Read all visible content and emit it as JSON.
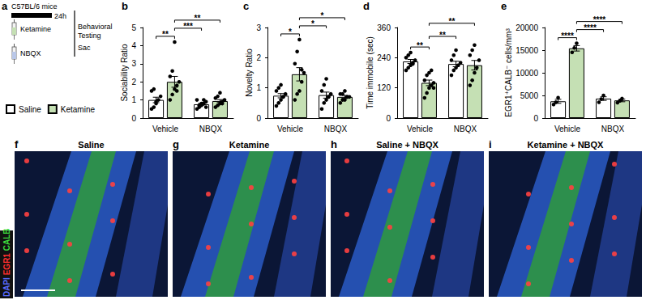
{
  "schematic": {
    "panel_label": "a",
    "strain": "C57BL/6 mice",
    "duration": "24h",
    "treatments": [
      "Ketamine",
      "NBQX"
    ],
    "endpoint": "Behavioral Testing",
    "sacrifice": "Sac"
  },
  "chart_data": [
    {
      "type": "bar",
      "panel_label": "b",
      "ylabel": "Sociability Ratio",
      "categories": [
        "Vehicle",
        "NBQX"
      ],
      "ylim": [
        0,
        5
      ],
      "yticks": [
        0,
        1,
        2,
        3,
        4,
        5
      ],
      "grid": false,
      "legend": "left",
      "series": [
        {
          "name": "Saline",
          "color": "#ffffff",
          "values": [
            1.0,
            0.76
          ],
          "errors": [
            0.15,
            0.05
          ],
          "points": [
            [
              0.5,
              0.6,
              0.8,
              1.0,
              1.2,
              1.5,
              1.6,
              0.9
            ],
            [
              0.5,
              0.6,
              0.7,
              0.8,
              0.9,
              1.0,
              0.7,
              0.8,
              1.0,
              0.6
            ]
          ]
        },
        {
          "name": "Ketamine",
          "color": "#c5e0b4",
          "values": [
            2.0,
            0.94
          ],
          "errors": [
            0.3,
            0.08
          ],
          "points": [
            [
              1.0,
              1.3,
              1.6,
              1.8,
              2.0,
              2.3,
              2.6,
              4.2,
              1.5
            ],
            [
              0.6,
              0.7,
              0.8,
              0.9,
              1.0,
              1.1,
              1.2,
              1.4,
              0.8
            ]
          ]
        }
      ],
      "significance": [
        {
          "from": [
            0,
            0
          ],
          "to": [
            0,
            1
          ],
          "label": "**"
        },
        {
          "from": [
            0,
            1
          ],
          "to": [
            1,
            0
          ],
          "label": "***"
        },
        {
          "from": [
            0,
            1
          ],
          "to": [
            1,
            1
          ],
          "label": "**"
        }
      ]
    },
    {
      "type": "bar",
      "panel_label": "c",
      "ylabel": "Novelty Ratio",
      "categories": [
        "Vehicle",
        "NBQX"
      ],
      "ylim": [
        0,
        3
      ],
      "yticks": [
        0,
        1,
        2,
        3
      ],
      "grid": false,
      "series": [
        {
          "name": "Saline",
          "color": "#ffffff",
          "values": [
            0.74,
            0.76
          ],
          "errors": [
            0.07,
            0.1
          ],
          "points": [
            [
              0.4,
              0.5,
              0.6,
              0.7,
              0.8,
              0.9,
              1.0,
              1.1,
              0.7
            ],
            [
              0.3,
              0.5,
              0.6,
              0.7,
              0.8,
              0.9,
              1.1,
              1.3,
              0.7
            ]
          ]
        },
        {
          "name": "Ketamine",
          "color": "#c5e0b4",
          "values": [
            1.45,
            0.7
          ],
          "errors": [
            0.22,
            0.05
          ],
          "points": [
            [
              0.6,
              0.8,
              0.9,
              1.2,
              1.5,
              1.8,
              2.2,
              2.6,
              1.6
            ],
            [
              0.5,
              0.6,
              0.6,
              0.7,
              0.7,
              0.8,
              0.8,
              0.9
            ]
          ]
        }
      ],
      "significance": [
        {
          "from": [
            0,
            0
          ],
          "to": [
            0,
            1
          ],
          "label": "*"
        },
        {
          "from": [
            0,
            1
          ],
          "to": [
            1,
            0
          ],
          "label": "*"
        },
        {
          "from": [
            0,
            1
          ],
          "to": [
            1,
            1
          ],
          "label": "*"
        }
      ]
    },
    {
      "type": "bar",
      "panel_label": "d",
      "ylabel": "Time immobile (sec)",
      "categories": [
        "Vehicle",
        "NBQX"
      ],
      "ylim": [
        0,
        360
      ],
      "yticks": [
        0,
        120,
        240,
        360
      ],
      "grid": false,
      "series": [
        {
          "name": "Saline",
          "color": "#ffffff",
          "values": [
            225,
            215
          ],
          "errors": [
            8,
            11
          ],
          "points": [
            [
              190,
              200,
              210,
              220,
              230,
              240,
              250,
              260,
              215
            ],
            [
              170,
              190,
              200,
              210,
              220,
              230,
              250,
              270
            ]
          ]
        },
        {
          "name": "Ketamine",
          "color": "#c5e0b4",
          "values": [
            140,
            210
          ],
          "errors": [
            11,
            19
          ],
          "points": [
            [
              80,
              100,
              120,
              130,
              140,
              150,
              170,
              180,
              190,
              120
            ],
            [
              130,
              150,
              180,
              200,
              230,
              250,
              270,
              290
            ]
          ]
        }
      ],
      "significance": [
        {
          "from": [
            0,
            0
          ],
          "to": [
            0,
            1
          ],
          "label": "**"
        },
        {
          "from": [
            0,
            1
          ],
          "to": [
            1,
            0
          ],
          "label": "**"
        },
        {
          "from": [
            0,
            1
          ],
          "to": [
            1,
            1
          ],
          "label": "**"
        }
      ]
    },
    {
      "type": "bar",
      "panel_label": "e",
      "ylabel": "EGR1⁺CALB⁻ cells/mm³",
      "categories": [
        "Vehicle",
        "NBQX"
      ],
      "ylim": [
        0,
        20000
      ],
      "yticks": [
        0,
        5000,
        10000,
        15000,
        20000
      ],
      "grid": false,
      "series": [
        {
          "name": "Saline",
          "color": "#ffffff",
          "values": [
            3700,
            4300
          ],
          "errors": [
            450,
            400
          ],
          "points": [
            [
              3000,
              3500,
              4500
            ],
            [
              3500,
              4200,
              5000
            ]
          ]
        },
        {
          "name": "Ketamine",
          "color": "#c5e0b4",
          "values": [
            15400,
            3900
          ],
          "errors": [
            600,
            300
          ],
          "points": [
            [
              14500,
              15500,
              16500
            ],
            [
              3400,
              3800,
              4300
            ]
          ]
        }
      ],
      "significance": [
        {
          "from": [
            0,
            0
          ],
          "to": [
            0,
            1
          ],
          "label": "****"
        },
        {
          "from": [
            0,
            1
          ],
          "to": [
            1,
            0
          ],
          "label": "****"
        },
        {
          "from": [
            0,
            1
          ],
          "to": [
            1,
            1
          ],
          "label": "****"
        }
      ]
    }
  ],
  "micrographs": {
    "channels": [
      {
        "name": "DAPI",
        "color": "#5a6cff"
      },
      {
        "name": "EGR1",
        "color": "#ff3030"
      },
      {
        "name": "CALB",
        "color": "#3ddc3d"
      }
    ],
    "panels": [
      {
        "panel_label": "f",
        "title": "Saline"
      },
      {
        "panel_label": "g",
        "title": "Ketamine"
      },
      {
        "panel_label": "h",
        "title": "Saline + NBQX"
      },
      {
        "panel_label": "i",
        "title": "Ketamine + NBQX"
      }
    ]
  }
}
